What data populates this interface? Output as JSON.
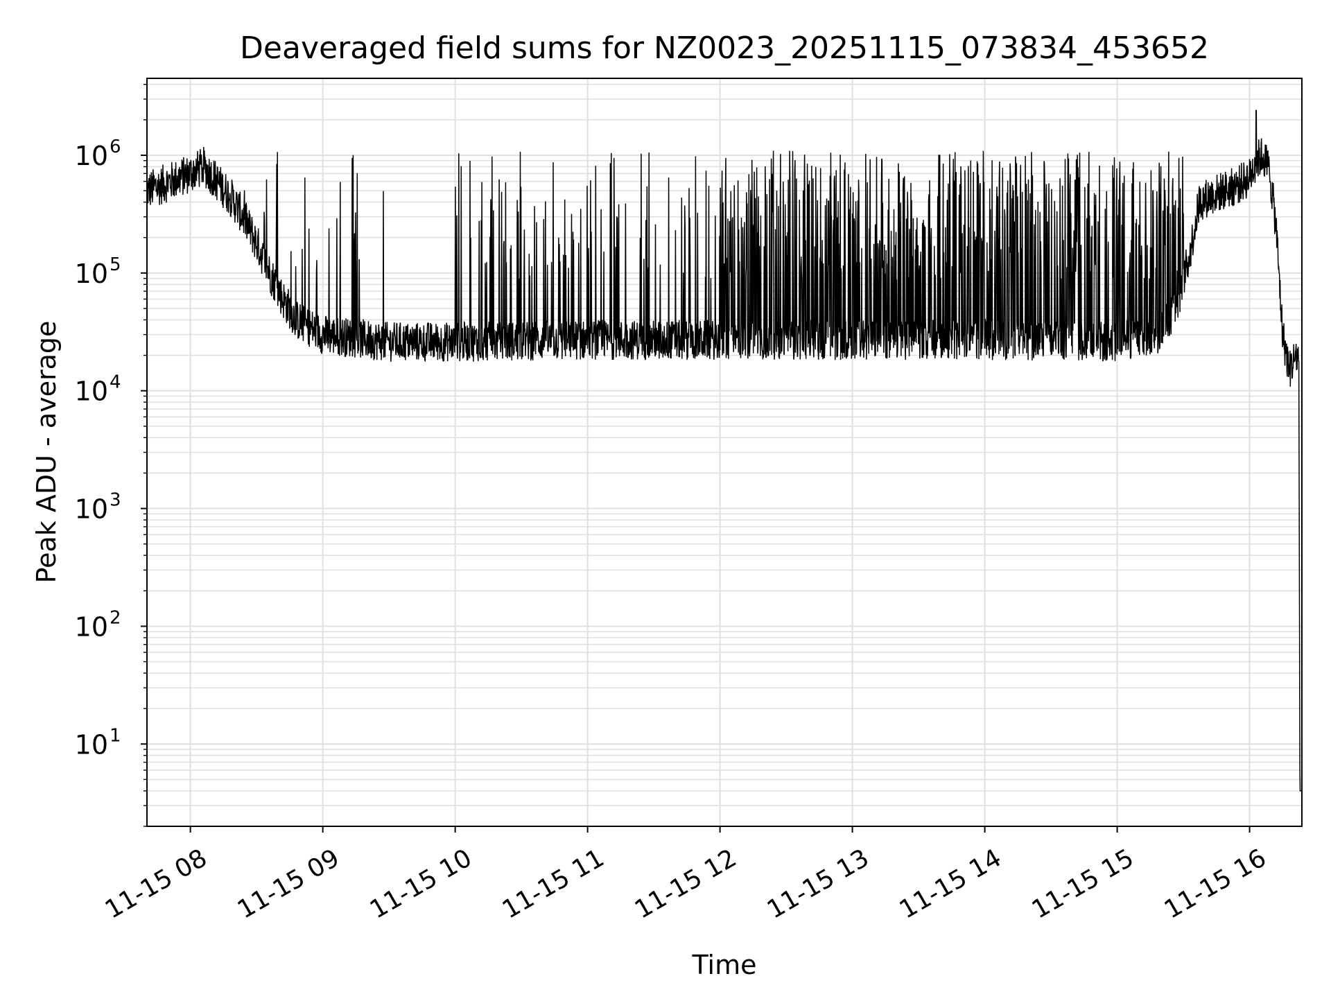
{
  "chart_data": {
    "type": "line",
    "title": "Deaveraged field sums for NZ0023_20251115_073834_453652",
    "xlabel": "Time",
    "ylabel": "Peak ADU - average",
    "yscale": "log",
    "ylim": [
      2,
      4500000
    ],
    "xlim_hours": [
      7.672,
      16.395
    ],
    "grid": "on (major and minor)",
    "legend": "none",
    "line_color": "#000000",
    "grid_color": "#e0e0e0",
    "x_ticks": [
      {
        "hour": 8,
        "label": "11-15 08"
      },
      {
        "hour": 9,
        "label": "11-15 09"
      },
      {
        "hour": 10,
        "label": "11-15 10"
      },
      {
        "hour": 11,
        "label": "11-15 11"
      },
      {
        "hour": 12,
        "label": "11-15 12"
      },
      {
        "hour": 13,
        "label": "11-15 13"
      },
      {
        "hour": 14,
        "label": "11-15 14"
      },
      {
        "hour": 15,
        "label": "11-15 15"
      },
      {
        "hour": 16,
        "label": "11-15 16"
      }
    ],
    "y_ticks": [
      {
        "value": 10,
        "base": "10",
        "exp": "1"
      },
      {
        "value": 100,
        "base": "10",
        "exp": "2"
      },
      {
        "value": 1000,
        "base": "10",
        "exp": "3"
      },
      {
        "value": 10000,
        "base": "10",
        "exp": "4"
      },
      {
        "value": 100000,
        "base": "10",
        "exp": "5"
      },
      {
        "value": 1000000,
        "base": "10",
        "exp": "6"
      }
    ],
    "series": [
      {
        "name": "Deaveraged field sum",
        "baseline_envelope": {
          "hours": [
            7.672,
            7.85,
            8.0,
            8.1,
            8.2,
            8.3,
            8.4,
            8.5,
            8.6,
            8.7,
            8.8,
            9.0,
            9.5,
            10.0,
            11.0,
            12.0,
            13.0,
            14.0,
            15.0,
            15.3,
            15.45,
            15.55,
            15.62,
            15.7,
            15.8,
            15.9,
            16.0,
            16.05,
            16.1,
            16.15,
            16.2,
            16.25,
            16.3,
            16.35,
            16.372,
            16.38,
            16.395
          ],
          "values": [
            500000,
            600000,
            700000,
            800000,
            600000,
            450000,
            300000,
            180000,
            100000,
            60000,
            40000,
            30000,
            26000,
            26000,
            27000,
            27000,
            27000,
            27000,
            26000,
            30000,
            50000,
            150000,
            400000,
            450000,
            500000,
            550000,
            650000,
            900000,
            1000000,
            750000,
            250000,
            30000,
            15000,
            20000,
            18000,
            4,
            4
          ]
        },
        "spike_peak": 1100000,
        "max_value": 2400000,
        "max_value_hour": 16.05,
        "min_value": 4,
        "spike_density_regions": [
          {
            "from_hour": 8.0,
            "to_hour": 9.5,
            "note": "sparse spikes"
          },
          {
            "from_hour": 10.0,
            "to_hour": 12.0,
            "note": "moderate spikes"
          },
          {
            "from_hour": 12.0,
            "to_hour": 15.5,
            "note": "dense spikes up to ~1e6"
          }
        ]
      }
    ]
  }
}
